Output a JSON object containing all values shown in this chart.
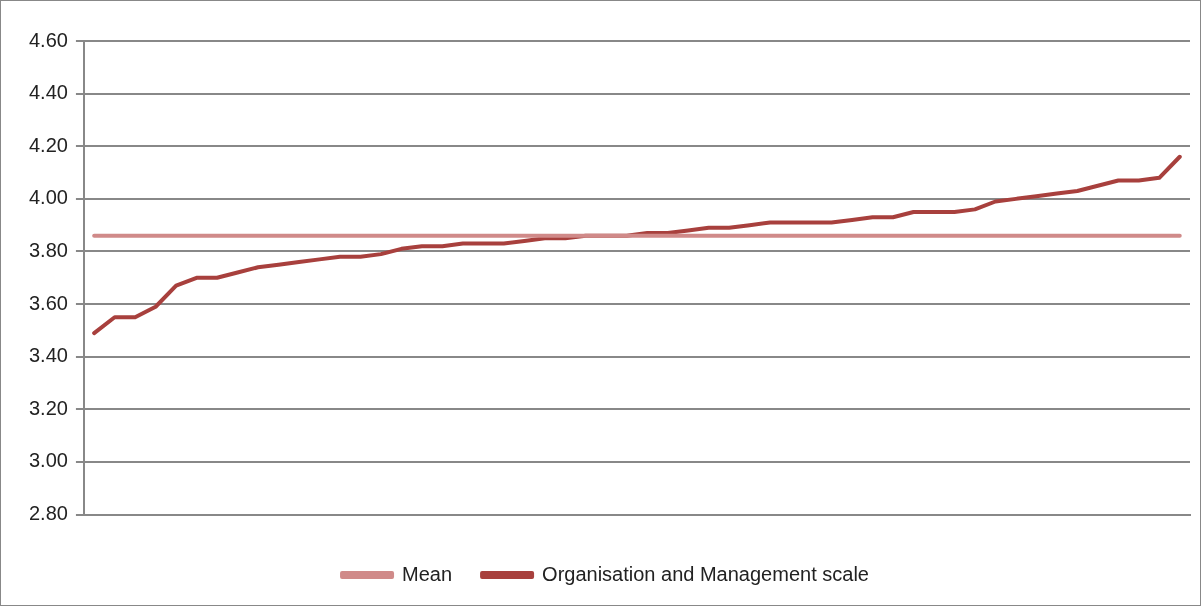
{
  "chart_data": {
    "type": "line",
    "categories": [
      null,
      null,
      null,
      null,
      null,
      null,
      null,
      null,
      null,
      null,
      null,
      null,
      null,
      null,
      null,
      null,
      null,
      null,
      null,
      null,
      null,
      null,
      null,
      null,
      null,
      null,
      null,
      null,
      null,
      null,
      null,
      null,
      null,
      null,
      null,
      null,
      null,
      null,
      null,
      null,
      null,
      null,
      null,
      null,
      null,
      null,
      null,
      null,
      null,
      null,
      null,
      null,
      null,
      null
    ],
    "series": [
      {
        "name": "Mean",
        "color": "#d08a89",
        "values": [
          3.86,
          3.86,
          3.86,
          3.86,
          3.86,
          3.86,
          3.86,
          3.86,
          3.86,
          3.86,
          3.86,
          3.86,
          3.86,
          3.86,
          3.86,
          3.86,
          3.86,
          3.86,
          3.86,
          3.86,
          3.86,
          3.86,
          3.86,
          3.86,
          3.86,
          3.86,
          3.86,
          3.86,
          3.86,
          3.86,
          3.86,
          3.86,
          3.86,
          3.86,
          3.86,
          3.86,
          3.86,
          3.86,
          3.86,
          3.86,
          3.86,
          3.86,
          3.86,
          3.86,
          3.86,
          3.86,
          3.86,
          3.86,
          3.86,
          3.86,
          3.86,
          3.86,
          3.86,
          3.86
        ]
      },
      {
        "name": "Organisation and Management scale",
        "color": "#a8403d",
        "values": [
          3.49,
          3.55,
          3.55,
          3.59,
          3.67,
          3.7,
          3.7,
          3.72,
          3.74,
          3.75,
          3.76,
          3.77,
          3.78,
          3.78,
          3.79,
          3.81,
          3.82,
          3.82,
          3.83,
          3.83,
          3.83,
          3.84,
          3.85,
          3.85,
          3.86,
          3.86,
          3.86,
          3.87,
          3.87,
          3.88,
          3.89,
          3.89,
          3.9,
          3.91,
          3.91,
          3.91,
          3.91,
          3.92,
          3.93,
          3.93,
          3.95,
          3.95,
          3.95,
          3.96,
          3.99,
          4.0,
          4.01,
          4.02,
          4.03,
          4.05,
          4.07,
          4.07,
          4.08,
          4.16
        ]
      }
    ],
    "ylim": [
      2.8,
      4.6
    ],
    "yticks": [
      {
        "value": 2.8,
        "label": "2.80"
      },
      {
        "value": 3.0,
        "label": "3.00"
      },
      {
        "value": 3.2,
        "label": "3.20"
      },
      {
        "value": 3.4,
        "label": "3.40"
      },
      {
        "value": 3.6,
        "label": "3.60"
      },
      {
        "value": 3.8,
        "label": "3.80"
      },
      {
        "value": 4.0,
        "label": "4.00"
      },
      {
        "value": 4.2,
        "label": "4.20"
      },
      {
        "value": 4.4,
        "label": "4.40"
      },
      {
        "value": 4.6,
        "label": "4.60"
      }
    ],
    "grid": "y",
    "legend": "bottom",
    "marker": "none",
    "line_style": "solid"
  }
}
